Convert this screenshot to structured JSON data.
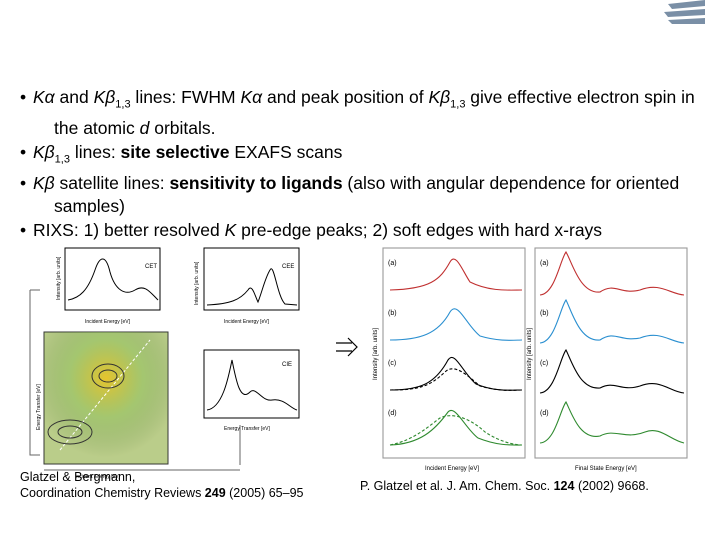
{
  "bullets": [
    [
      "Kα",
      " and ",
      "Kβ",
      "1,3",
      " lines: FWHM ",
      "Kα",
      " and peak position of ",
      "Kβ",
      "1,3",
      " give effective electron spin in the atomic ",
      "d",
      " orbitals."
    ],
    [
      "Kβ",
      "1,3",
      " lines: ",
      "site selective",
      " EXAFS scans"
    ],
    [
      "Kβ",
      " satellite lines: ",
      "sensitivity to ligands",
      " (also with angular dependence for oriented samples)"
    ],
    [
      "RIXS: 1) better resolved ",
      "K",
      " pre-edge peaks; 2) soft edges with hard x-rays"
    ]
  ],
  "left_figure": {
    "labels": [
      "CET",
      "CEE",
      "CIE"
    ],
    "axis_incident": "Incident Energy [eV]",
    "axis_transfer": "Energy Transfer [eV]",
    "axis_intensity": "Intensity [arb. units]"
  },
  "right_figure": {
    "panels": [
      "(a)",
      "(b)",
      "(c)",
      "(d)"
    ],
    "axis_incident": "Incident Energy [eV]",
    "axis_final": "Final State Energy [eV]",
    "axis_intensity": "Intensity [arb. units]"
  },
  "caption_left": [
    "Glatzel & Bergmann,",
    "Coordination Chemistry Reviews ",
    "249",
    " (2005) 65–95"
  ],
  "caption_right": [
    "P. Glatzel et al. J. Am. Chem. Soc. ",
    "124",
    " (2002) 9668."
  ]
}
